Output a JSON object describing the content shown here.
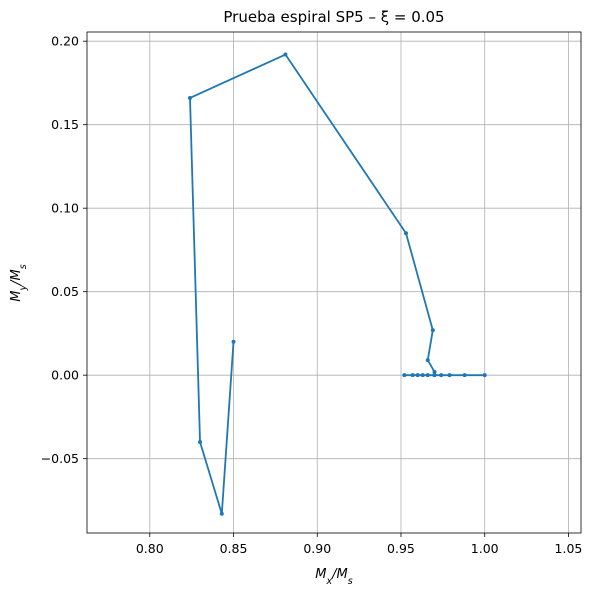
{
  "chart_data": {
    "type": "line",
    "title": "Prueba espiral SP5 – ξ = 0.05",
    "xlabel": "M_x/M_s",
    "ylabel": "M_y/M_s",
    "xlim": [
      0.7625,
      1.0575
    ],
    "ylim": [
      -0.0945,
      0.2055
    ],
    "grid": true,
    "xticks": [
      0.8,
      0.85,
      0.9,
      0.95,
      1.0,
      1.05
    ],
    "xtick_labels": [
      "0.80",
      "0.85",
      "0.90",
      "0.95",
      "1.00",
      "1.05"
    ],
    "yticks": [
      -0.05,
      0.0,
      0.05,
      0.1,
      0.15,
      0.2
    ],
    "ytick_labels": [
      "−0.05",
      "0.00",
      "0.05",
      "0.10",
      "0.15",
      "0.20"
    ],
    "series": [
      {
        "color": "#1f77b4",
        "marker": "circle",
        "x": [
          1.0,
          0.988,
          0.979,
          0.974,
          0.97,
          0.966,
          0.963,
          0.96,
          0.957,
          0.952,
          0.97,
          0.97,
          0.966,
          0.969,
          0.953,
          0.881,
          0.824,
          0.83,
          0.843,
          0.85
        ],
        "y": [
          0.0,
          0.0,
          0.0,
          0.0,
          0.0,
          0.0,
          0.0,
          0.0,
          0.0,
          0.0,
          0.0,
          0.002,
          0.009,
          0.027,
          0.085,
          0.192,
          0.166,
          -0.04,
          -0.083,
          0.02
        ]
      }
    ]
  }
}
